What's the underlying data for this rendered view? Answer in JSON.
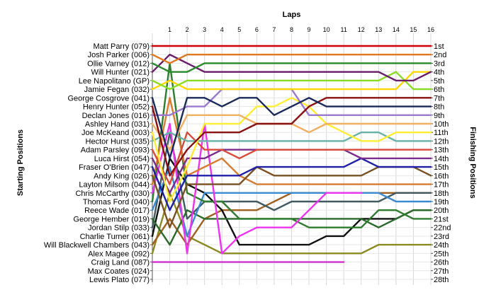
{
  "chart_data": {
    "type": "line",
    "title": "Laps",
    "xlabel": "Laps",
    "ylabel_left": "Starting Positions",
    "ylabel_right": "Finishing Positions",
    "x": [
      0,
      1,
      2,
      3,
      4,
      5,
      6,
      7,
      8,
      9,
      10,
      11,
      12,
      13,
      14,
      15,
      16
    ],
    "x_tick_labels": [
      "1",
      "2",
      "3",
      "4",
      "5",
      "6",
      "7",
      "8",
      "9",
      "10",
      "11",
      "12",
      "13",
      "14",
      "15",
      "16"
    ],
    "xlim": [
      0,
      16
    ],
    "ylim": [
      1,
      28
    ],
    "grid": true,
    "drivers": [
      "Matt Parry (079)",
      "Josh Parker (006)",
      "Ollie Varney (012)",
      "Will Hunter (021)",
      "Lee Napolitano (GP)",
      "Jamie Fegan (032)",
      "George Cosgrove (041)",
      "Henry Hunter (052)",
      "Declan Jones (016)",
      "Ashley Hand (031)",
      "Joe McKeand (003)",
      "Hector Hurst (035)",
      "Adam Parsley (093)",
      "Luca Hirst (054)",
      "Fraser O'Brien (047)",
      "Andy King (026)",
      "Layton Milsom (044)",
      "Chris McCarthy (030)",
      "Thomas Ford (040)",
      "Reece Wade (017)",
      "George Hember (019)",
      "Jordan Stilp (033)",
      "Charlie Turner (061)",
      "Will Blackwell Chambers (043)",
      "Alex Magee (092)",
      "Craig Land (087)",
      "Max Coates (024)",
      "Lewis Plato (077)"
    ],
    "finishing_labels": [
      "1st",
      "2nd",
      "3rd",
      "4th",
      "5th",
      "6th",
      "7th",
      "8th",
      "9th",
      "10th",
      "11th",
      "12th",
      "13th",
      "14th",
      "15th",
      "16th",
      "17th",
      "18th",
      "19th",
      "20th",
      "21st",
      "22nd",
      "23rd",
      "24th",
      "25th",
      "26th",
      "27th",
      "28th"
    ],
    "series": [
      {
        "color": "#cc0000",
        "values": [
          1,
          1,
          1,
          1,
          1,
          1,
          1,
          1,
          1,
          1,
          1,
          1,
          1,
          1,
          1,
          1,
          1
        ]
      },
      {
        "color": "#e07820",
        "values": [
          2,
          3,
          2,
          2,
          2,
          2,
          2,
          2,
          2,
          2,
          2,
          2,
          2,
          2,
          2,
          2,
          2
        ]
      },
      {
        "color": "#2a8a2a",
        "values": [
          3,
          4,
          4,
          3,
          3,
          3,
          3,
          3,
          3,
          3,
          3,
          3,
          3,
          3,
          3,
          3,
          3
        ]
      },
      {
        "color": "#6a1b6a",
        "values": [
          4,
          2,
          3,
          4,
          4,
          4,
          4,
          4,
          4,
          4,
          4,
          4,
          4,
          4,
          5,
          5,
          4
        ]
      },
      {
        "color": "#88dd22",
        "values": [
          5,
          6,
          5,
          5,
          5,
          5,
          5,
          5,
          5,
          5,
          5,
          5,
          5,
          5,
          4,
          6,
          6
        ]
      },
      {
        "color": "#ffd700",
        "values": [
          6,
          5,
          6,
          6,
          6,
          6,
          6,
          6,
          6,
          6,
          6,
          6,
          6,
          6,
          6,
          4,
          4
        ]
      },
      {
        "color": "#1a2a5a",
        "values": [
          7,
          14,
          7,
          7,
          8,
          7,
          7,
          9,
          8,
          7,
          8,
          8,
          8,
          8,
          8,
          8,
          8
        ]
      },
      {
        "color": "#8b1010",
        "values": [
          8,
          16,
          13,
          11,
          11,
          11,
          10,
          10,
          10,
          8,
          7,
          7,
          7,
          7,
          7,
          7,
          7
        ]
      },
      {
        "color": "#9a7ad0",
        "values": [
          9,
          9,
          8,
          8,
          6,
          6,
          6,
          6,
          6,
          9,
          9,
          9,
          9,
          9,
          9,
          9,
          9
        ]
      },
      {
        "color": "#f0b060",
        "values": [
          10,
          13,
          9,
          9,
          9,
          9,
          10,
          10,
          10,
          11,
          10,
          10,
          10,
          10,
          10,
          10,
          10
        ]
      },
      {
        "color": "#ffee33",
        "values": [
          11,
          19,
          15,
          10,
          10,
          10,
          8,
          8,
          7,
          8,
          10,
          11,
          12,
          12,
          11,
          11,
          11
        ]
      },
      {
        "color": "#66b2a6",
        "values": [
          12,
          11,
          12,
          12,
          12,
          12,
          12,
          12,
          12,
          12,
          12,
          12,
          11,
          11,
          12,
          12,
          12
        ]
      },
      {
        "color": "#d94a3a",
        "values": [
          13,
          17,
          11,
          13,
          13,
          14,
          13,
          13,
          13,
          13,
          13,
          13,
          13,
          13,
          13,
          13,
          13
        ]
      },
      {
        "color": "#7b2d8b",
        "values": [
          14,
          18,
          14,
          14,
          13,
          13,
          13,
          13,
          13,
          13,
          13,
          13,
          14,
          14,
          14,
          14,
          14
        ]
      },
      {
        "color": "#1f1fa8",
        "values": [
          15,
          20,
          16,
          16,
          16,
          16,
          15,
          15,
          15,
          15,
          15,
          15,
          14,
          15,
          15,
          15,
          15
        ]
      },
      {
        "color": "#7a5020",
        "values": [
          16,
          22,
          17,
          17,
          17,
          17,
          15,
          16,
          16,
          16,
          16,
          16,
          16,
          15,
          15,
          15,
          16
        ]
      },
      {
        "color": "#d87a30",
        "values": [
          17,
          7,
          16,
          15,
          14,
          16,
          17,
          17,
          17,
          17,
          17,
          17,
          17,
          17,
          17,
          17,
          17
        ]
      },
      {
        "color": "#ee33ee",
        "values": [
          18,
          10,
          25,
          10,
          25,
          23,
          22,
          22,
          22,
          20,
          18,
          18,
          18,
          null,
          null,
          null,
          null
        ]
      },
      {
        "color": "#2e7d2e",
        "values": [
          19,
          3,
          18,
          19,
          19,
          21,
          21,
          21,
          21,
          22,
          22,
          22,
          22,
          20,
          20,
          21,
          21
        ]
      },
      {
        "color": "#3a8bd4",
        "values": [
          20,
          15,
          23,
          18,
          18,
          18,
          18,
          18,
          18,
          18,
          18,
          18,
          18,
          18,
          19,
          19,
          19
        ]
      },
      {
        "color": "#2a6a2a",
        "values": [
          21,
          24,
          20,
          21,
          21,
          21,
          21,
          21,
          21,
          21,
          21,
          21,
          21,
          22,
          21,
          20,
          20
        ]
      },
      {
        "color": "#405a60",
        "values": [
          22,
          11,
          21,
          19,
          19,
          19,
          19,
          20,
          19,
          19,
          19,
          19,
          19,
          19,
          18,
          18,
          18
        ]
      },
      {
        "color": "#111111",
        "values": [
          23,
          14,
          17,
          18,
          20,
          24,
          24,
          24,
          24,
          24,
          23,
          23,
          21,
          21,
          21,
          20,
          20
        ]
      },
      {
        "color": "#a06020",
        "values": [
          24,
          21,
          24,
          21,
          20,
          20,
          20,
          19,
          18,
          18,
          18,
          18,
          18,
          18,
          18,
          18,
          18
        ]
      },
      {
        "color": "#8a8a20",
        "values": [
          25,
          18,
          23,
          24,
          25,
          25,
          25,
          25,
          25,
          25,
          25,
          25,
          25,
          24,
          24,
          24,
          24
        ]
      },
      {
        "color": "#d030d0",
        "values": [
          26,
          26,
          26,
          26,
          26,
          26,
          26,
          26,
          26,
          26,
          26,
          26,
          null,
          null,
          null,
          null,
          null
        ]
      }
    ]
  }
}
